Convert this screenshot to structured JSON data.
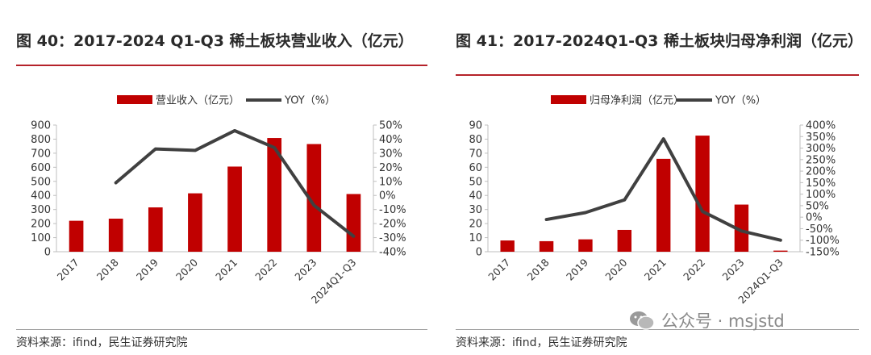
{
  "chart_data": [
    {
      "type": "bar+line",
      "title": "图 40：2017-2024 Q1-Q3 稀土板块营业收入（亿元）",
      "categories": [
        "2017",
        "2018",
        "2019",
        "2020",
        "2021",
        "2022",
        "2023",
        "2024Q1-Q3"
      ],
      "series": [
        {
          "name": "营业收入（亿元）",
          "type": "bar",
          "axis": "left",
          "color": "#c00000",
          "values": [
            220,
            235,
            315,
            415,
            605,
            808,
            765,
            410
          ]
        },
        {
          "name": "YOY（%）",
          "type": "line",
          "axis": "right",
          "color": "#404040",
          "values": [
            null,
            9,
            33,
            32,
            46,
            34,
            -7,
            -29
          ]
        }
      ],
      "y_left": {
        "min": 0,
        "max": 900,
        "step": 100,
        "ticks": [
          "0",
          "100",
          "200",
          "300",
          "400",
          "500",
          "600",
          "700",
          "800",
          "900"
        ]
      },
      "y_right": {
        "min": -40,
        "max": 50,
        "step": 10,
        "ticks": [
          "-40%",
          "-30%",
          "-20%",
          "-10%",
          "0%",
          "10%",
          "20%",
          "30%",
          "40%",
          "50%"
        ]
      },
      "legend_position": "top-center",
      "grid": false,
      "source": "资料来源：ifind，民生证券研究院"
    },
    {
      "type": "bar+line",
      "title": "图 41：2017-2024Q1-Q3 稀土板块归母净利润（亿元）",
      "categories": [
        "2017",
        "2018",
        "2019",
        "2020",
        "2021",
        "2022",
        "2023",
        "2024Q1-Q3"
      ],
      "series": [
        {
          "name": "归母净利润（亿元）",
          "type": "bar",
          "axis": "left",
          "color": "#c00000",
          "values": [
            8,
            7.5,
            8.8,
            15.5,
            66,
            82.5,
            33.5,
            0.8
          ]
        },
        {
          "name": "YOY（%）",
          "type": "line",
          "axis": "right",
          "color": "#404040",
          "values": [
            null,
            -10,
            20,
            75,
            340,
            25,
            -60,
            -100
          ]
        }
      ],
      "y_left": {
        "min": 0,
        "max": 90,
        "step": 10,
        "ticks": [
          "0",
          "10",
          "20",
          "30",
          "40",
          "50",
          "60",
          "70",
          "80",
          "90"
        ]
      },
      "y_right": {
        "min": -150,
        "max": 400,
        "step": 50,
        "ticks": [
          "-150%",
          "-100%",
          "-50%",
          "0%",
          "50%",
          "100%",
          "150%",
          "200%",
          "250%",
          "300%",
          "350%",
          "400%"
        ]
      },
      "legend_position": "top-center",
      "grid": false,
      "source": "资料来源：ifind，民生证券研究院"
    }
  ],
  "watermark": {
    "text": "公众号 · msjstd",
    "icon": "wechat-icon"
  }
}
